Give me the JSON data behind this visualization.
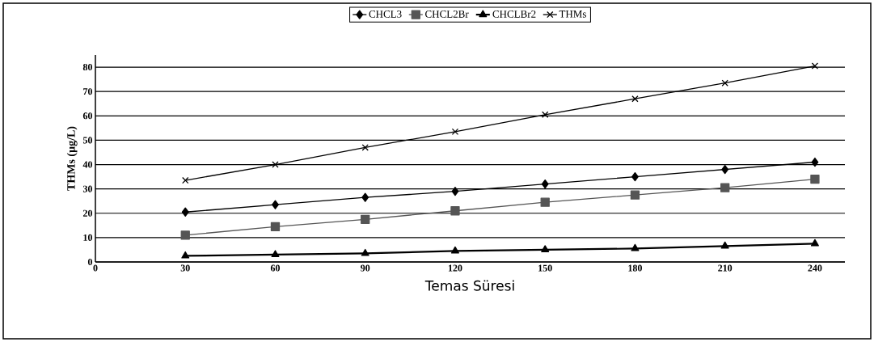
{
  "chart_data": {
    "type": "line",
    "xlabel": "Temas Süresi",
    "ylabel": "THMs (µg/L)",
    "x": [
      30,
      60,
      90,
      120,
      150,
      180,
      210,
      240
    ],
    "xlim": [
      0,
      250
    ],
    "xticks": [
      0,
      30,
      60,
      90,
      120,
      150,
      180,
      210,
      240
    ],
    "ylim": [
      0,
      85
    ],
    "yticks": [
      0,
      10,
      20,
      30,
      40,
      50,
      60,
      70,
      80
    ],
    "grid": "y",
    "legend": "top",
    "series": [
      {
        "name": "CHCL3",
        "color": "#000000",
        "marker": "diamond",
        "values": [
          20.5,
          23.5,
          26.5,
          29,
          32,
          35,
          38,
          41
        ]
      },
      {
        "name": "CHCL2Br",
        "color": "#555555",
        "marker": "square",
        "values": [
          11,
          14.5,
          17.5,
          21,
          24.5,
          27.5,
          30.5,
          34
        ]
      },
      {
        "name": "CHCLBr2",
        "color": "#000000",
        "marker": "triangle",
        "values": [
          2.5,
          3,
          3.5,
          4.5,
          5,
          5.5,
          6.5,
          7.5
        ]
      },
      {
        "name": "THMs",
        "color": "#000000",
        "marker": "cross",
        "values": [
          33.5,
          40,
          47,
          53.5,
          60.5,
          67,
          73.5,
          80.5
        ]
      }
    ]
  }
}
